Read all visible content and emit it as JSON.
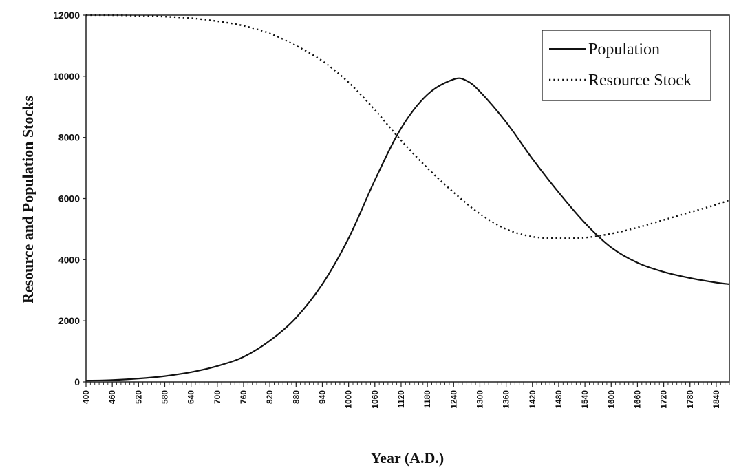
{
  "chart_data": {
    "type": "line",
    "title": "",
    "xlabel": "Year (A.D.)",
    "ylabel": "Resource and Population Stocks",
    "xlim": [
      400,
      1870
    ],
    "ylim": [
      0,
      12000
    ],
    "y_ticks": [
      0,
      2000,
      4000,
      6000,
      8000,
      10000,
      12000
    ],
    "x_ticks": [
      400,
      460,
      520,
      580,
      640,
      700,
      760,
      820,
      880,
      940,
      1000,
      1060,
      1120,
      1180,
      1240,
      1300,
      1360,
      1420,
      1480,
      1540,
      1600,
      1660,
      1720,
      1780,
      1840
    ],
    "grid": false,
    "legend": "top-right",
    "series": [
      {
        "name": "Population",
        "style": "solid",
        "color": "#111111",
        "x": [
          400,
          460,
          520,
          580,
          640,
          700,
          760,
          820,
          880,
          940,
          1000,
          1060,
          1120,
          1180,
          1240,
          1270,
          1300,
          1360,
          1420,
          1480,
          1540,
          1600,
          1660,
          1720,
          1780,
          1840,
          1870
        ],
        "y": [
          40,
          60,
          110,
          190,
          320,
          520,
          820,
          1350,
          2100,
          3200,
          4700,
          6600,
          8300,
          9400,
          9900,
          9850,
          9500,
          8500,
          7300,
          6200,
          5200,
          4400,
          3900,
          3600,
          3400,
          3250,
          3200
        ]
      },
      {
        "name": "Resource Stock",
        "style": "dotted",
        "color": "#111111",
        "x": [
          400,
          460,
          520,
          580,
          640,
          700,
          760,
          820,
          880,
          940,
          1000,
          1060,
          1120,
          1180,
          1240,
          1300,
          1360,
          1420,
          1480,
          1540,
          1600,
          1660,
          1720,
          1780,
          1840,
          1870
        ],
        "y": [
          12000,
          12000,
          11980,
          11950,
          11900,
          11800,
          11650,
          11400,
          11000,
          10500,
          9800,
          8900,
          7900,
          7000,
          6200,
          5500,
          5000,
          4750,
          4700,
          4720,
          4850,
          5050,
          5300,
          5550,
          5800,
          5950
        ]
      }
    ]
  }
}
